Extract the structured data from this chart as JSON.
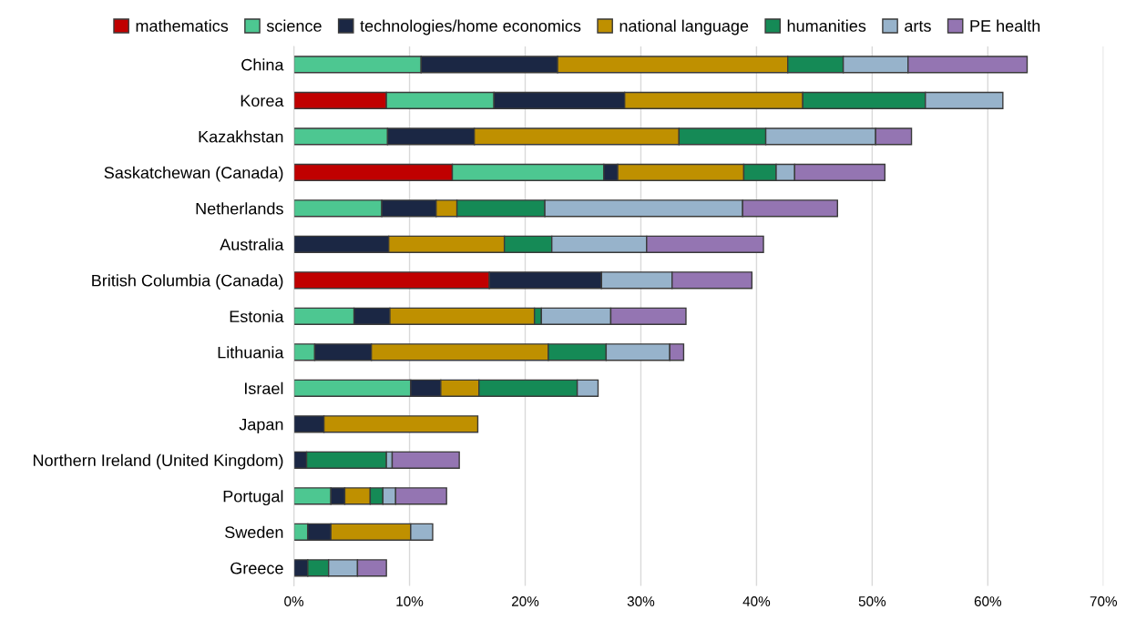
{
  "chart_data": {
    "type": "bar",
    "orientation": "horizontal",
    "stacked": true,
    "categories": [
      "China",
      "Korea",
      "Kazakhstan",
      "Saskatchewan (Canada)",
      "Netherlands",
      "Australia",
      "British Columbia (Canada)",
      "Estonia",
      "Lithuania",
      "Israel",
      "Japan",
      "Northern Ireland (United Kingdom)",
      "Portugal",
      "Sweden",
      "Greece"
    ],
    "series": [
      {
        "name": "mathematics",
        "color": "#c00000",
        "values": [
          null,
          8.0,
          null,
          13.7,
          null,
          null,
          16.9,
          null,
          null,
          null,
          null,
          null,
          null,
          null,
          null
        ]
      },
      {
        "name": "science",
        "color": "#4dc791",
        "values": [
          11.0,
          9.3,
          8.1,
          13.1,
          7.6,
          null,
          null,
          5.2,
          1.8,
          10.1,
          null,
          null,
          3.2,
          1.2,
          null
        ]
      },
      {
        "name": "technologies/home economics",
        "color": "#1b2744",
        "values": [
          11.8,
          11.3,
          7.5,
          1.2,
          4.7,
          8.2,
          9.7,
          3.1,
          4.9,
          2.6,
          2.6,
          1.1,
          1.2,
          2.0,
          1.2
        ]
      },
      {
        "name": "national language",
        "color": "#bf9000",
        "values": [
          19.9,
          15.4,
          17.7,
          10.9,
          1.8,
          10.0,
          null,
          12.5,
          15.3,
          3.3,
          13.3,
          null,
          2.2,
          6.9,
          null
        ]
      },
      {
        "name": "humanities",
        "color": "#158a56",
        "values": [
          4.8,
          10.6,
          7.5,
          2.8,
          7.6,
          4.1,
          null,
          0.6,
          5.0,
          8.5,
          null,
          6.9,
          1.1,
          null,
          1.8
        ]
      },
      {
        "name": "arts",
        "color": "#97b3cb",
        "values": [
          5.6,
          6.7,
          9.5,
          1.6,
          17.1,
          8.2,
          6.1,
          6.0,
          5.5,
          1.8,
          null,
          0.5,
          1.1,
          1.9,
          2.5
        ]
      },
      {
        "name": "PE health",
        "color": "#9475b2",
        "values": [
          10.3,
          null,
          3.1,
          7.8,
          8.2,
          10.1,
          6.9,
          6.5,
          1.2,
          null,
          null,
          5.8,
          4.4,
          null,
          2.5
        ]
      }
    ],
    "xlim": [
      0,
      70
    ],
    "xticks": [
      {
        "value": 0,
        "label": "0%"
      },
      {
        "value": 10,
        "label": "10%"
      },
      {
        "value": 20,
        "label": "20%"
      },
      {
        "value": 30,
        "label": "30%"
      },
      {
        "value": 40,
        "label": "40%"
      },
      {
        "value": 50,
        "label": "50%"
      },
      {
        "value": 60,
        "label": "60%"
      },
      {
        "value": 70,
        "label": "70%"
      }
    ],
    "grid": "x",
    "legend": "top"
  }
}
